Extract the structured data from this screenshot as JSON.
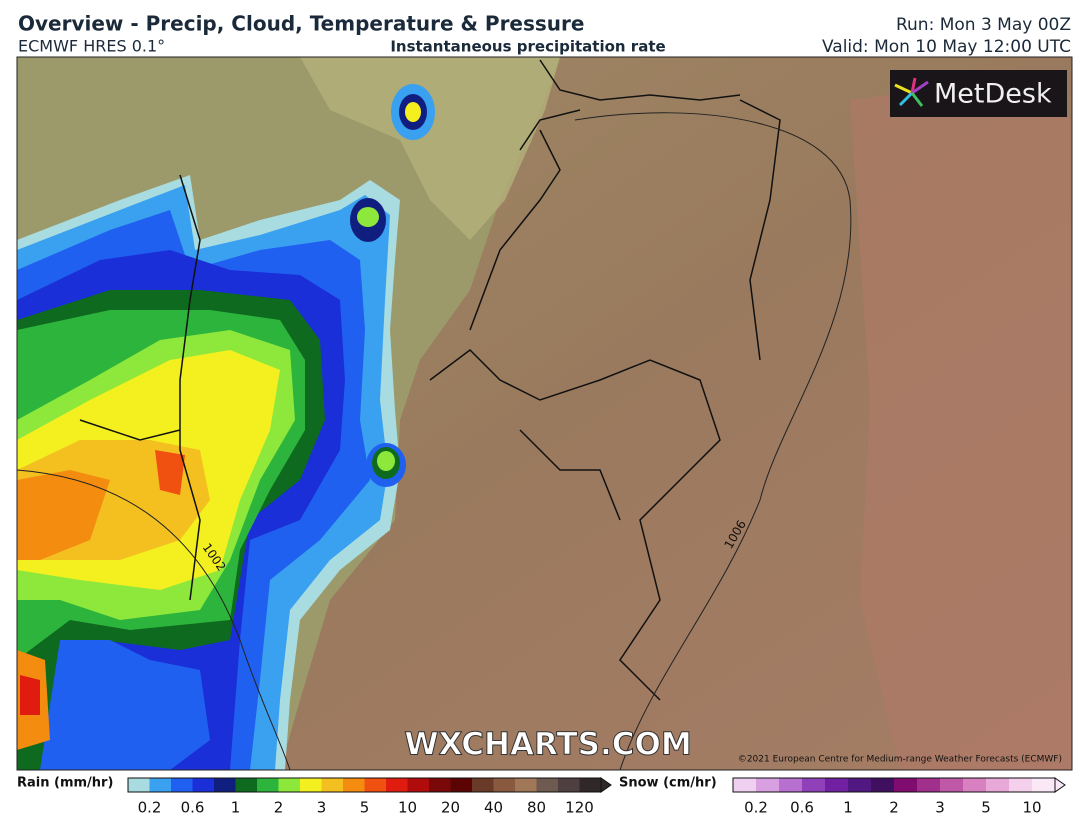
{
  "header": {
    "title": "Overview - Precip, Cloud, Temperature & Pressure",
    "model": "ECMWF HRES 0.1°",
    "subtitle": "Instantaneous precipitation rate",
    "run": "Run: Mon 3 May 00Z",
    "valid": "Valid: Mon 10 May 12:00 UTC"
  },
  "map": {
    "logo": "MetDesk",
    "watermark": "WXCHARTS.COM",
    "copyright": "©2021 European Centre for Medium-range Weather Forecasts (ECMWF)",
    "isobar_labels": [
      "1002",
      "1006"
    ]
  },
  "legend": {
    "rain": {
      "label": "Rain (mm/hr)",
      "ticks": [
        "0.2",
        "0.6",
        "1",
        "2",
        "3",
        "5",
        "10",
        "20",
        "40",
        "80",
        "120"
      ],
      "colors": [
        "#a8dce0",
        "#3aa0f0",
        "#2060f0",
        "#1a2fd8",
        "#101e80",
        "#0e6a1e",
        "#2cb43c",
        "#8ee83c",
        "#f4f020",
        "#f4c020",
        "#f48c10",
        "#f05010",
        "#e01c10",
        "#b00c0c",
        "#7a0808",
        "#5a0404",
        "#6a3a28",
        "#8a5a40",
        "#a07858",
        "#6e5a50",
        "#4e4040",
        "#302828"
      ]
    },
    "snow": {
      "label": "Snow (cm/hr)",
      "ticks": [
        "0.2",
        "0.6",
        "1",
        "2",
        "3",
        "5",
        "10"
      ],
      "colors": [
        "#f0d0f0",
        "#d8a0e0",
        "#b870d0",
        "#9040b8",
        "#7020a0",
        "#501880",
        "#401060",
        "#800c70",
        "#a0308c",
        "#c058a8",
        "#d880c0",
        "#e8a8d8",
        "#f4d0ec",
        "#fbe8f6"
      ]
    }
  }
}
